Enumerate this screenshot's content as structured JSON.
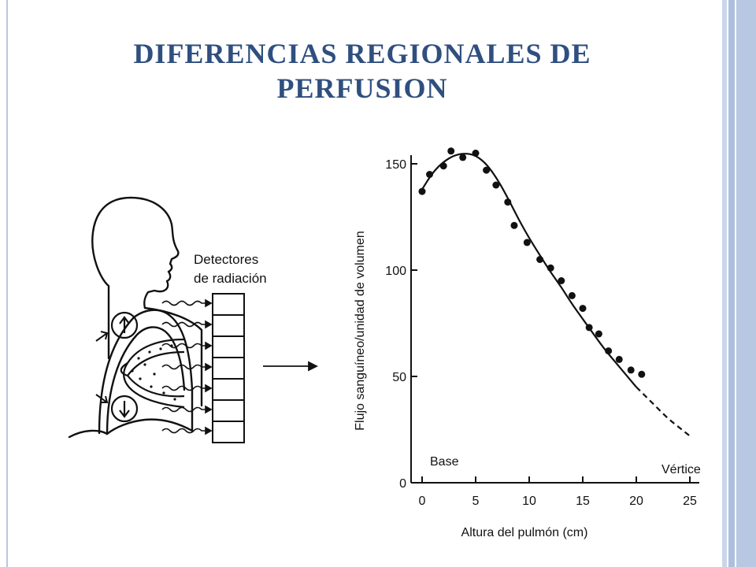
{
  "slide": {
    "title_line1": "DIFERENCIAS REGIONALES DE",
    "title_line2": "PERFUSION"
  },
  "diagram": {
    "detector_label_line1": "Detectores",
    "detector_label_line2": "de radiación",
    "detector_cell_count": 7
  },
  "chart_data": {
    "type": "scatter",
    "xlabel": "Altura del pulmón (cm)",
    "ylabel": "Flujo sanguíneo/unidad de volumen",
    "xlim": [
      0,
      25
    ],
    "ylim": [
      0,
      150
    ],
    "x_ticks": [
      0,
      5,
      10,
      15,
      20,
      25
    ],
    "y_ticks": [
      0,
      50,
      100,
      150
    ],
    "annotations": {
      "left": "Base",
      "right": "Vértice"
    },
    "grid": false,
    "series": [
      {
        "kind": "points",
        "x": [
          0,
          0.7,
          2,
          2.7,
          3.8,
          5,
          6,
          6.9,
          8,
          8.6,
          9.8,
          11,
          12,
          13,
          14,
          15,
          15.6,
          16.5,
          17.4,
          18.4,
          19.5,
          20.5
        ],
        "y": [
          137,
          145,
          149,
          156,
          153,
          155,
          147,
          140,
          132,
          121,
          113,
          105,
          101,
          95,
          88,
          82,
          73,
          70,
          62,
          58,
          53,
          51
        ]
      },
      {
        "kind": "fit-solid",
        "x": [
          0,
          1,
          2,
          3,
          4,
          5,
          6,
          7,
          8,
          9,
          10,
          11,
          12,
          13,
          14,
          15,
          16,
          17,
          18,
          19,
          20
        ],
        "y": [
          138,
          146,
          151,
          154,
          155,
          154,
          150,
          143,
          134,
          124,
          115,
          107,
          99,
          92,
          84,
          77,
          70,
          63,
          57,
          51,
          45
        ]
      },
      {
        "kind": "fit-dashed",
        "x": [
          20,
          21,
          22,
          23,
          24,
          25
        ],
        "y": [
          45,
          40,
          35,
          30,
          26,
          22
        ]
      }
    ]
  }
}
